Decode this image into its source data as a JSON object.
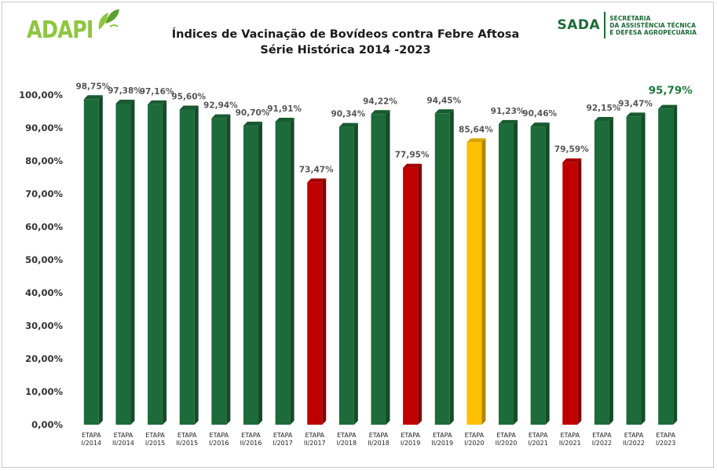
{
  "header": {
    "logo_left": "ADAPI",
    "logo_right_main": "SADA",
    "logo_right_lines": [
      "SECRETARIA",
      "DA ASSISTÊNCIA TÉCNICA",
      "E DEFESA AGROPECUÁRIA"
    ]
  },
  "colors": {
    "green": "#1d6b3a",
    "red": "#c00000",
    "yellow": "#ffc000",
    "logo_green": "#8dc63f"
  },
  "chart_data": {
    "type": "bar",
    "title": "Índices de Vacinação de Bovídeos contra Febre Aftosa",
    "subtitle": "Série Histórica 2014 -2023",
    "xlabel": "",
    "ylabel": "",
    "ylim": [
      0,
      100
    ],
    "y_ticks": [
      "0,00%",
      "10,00%",
      "20,00%",
      "30,00%",
      "40,00%",
      "50,00%",
      "60,00%",
      "70,00%",
      "80,00%",
      "90,00%",
      "100,00%"
    ],
    "grid": false,
    "categories": [
      [
        "ETAPA",
        "I/2014"
      ],
      [
        "ETAPA",
        "II/2014"
      ],
      [
        "ETAPA",
        "I/2015"
      ],
      [
        "ETAPA",
        "II/2015"
      ],
      [
        "ETAPA",
        "I/2016"
      ],
      [
        "ETAPA",
        "II/2016"
      ],
      [
        "ETAPA",
        "I/2017"
      ],
      [
        "ETAPA",
        "II/2017"
      ],
      [
        "ETAPA",
        "I/2018"
      ],
      [
        "ETAPA",
        "II/2018"
      ],
      [
        "ETAPA",
        "I/2019"
      ],
      [
        "ETAPA",
        "II/2019"
      ],
      [
        "ETAPA",
        "I/2020"
      ],
      [
        "ETAPA",
        "II/2020"
      ],
      [
        "ETAPA",
        "I/2021"
      ],
      [
        "ETAPA",
        "II/2021"
      ],
      [
        "ETAPA",
        "I/2022"
      ],
      [
        "ETAPA",
        "II/2022"
      ],
      [
        "ETAPA",
        "I/2023"
      ]
    ],
    "values": [
      98.75,
      97.38,
      97.16,
      95.6,
      92.94,
      90.7,
      91.91,
      73.47,
      90.34,
      94.22,
      77.95,
      94.45,
      85.64,
      91.23,
      90.46,
      79.59,
      92.15,
      93.47,
      95.79
    ],
    "data_labels": [
      "98,75%",
      "97,38%",
      "97,16%",
      "95,60%",
      "92,94%",
      "90,70%",
      "91,91%",
      "73,47%",
      "90,34%",
      "94,22%",
      "77,95%",
      "94,45%",
      "85,64%",
      "91,23%",
      "90,46%",
      "79,59%",
      "92,15%",
      "93,47%",
      "95,79%"
    ],
    "bar_colors": [
      "green",
      "green",
      "green",
      "green",
      "green",
      "green",
      "green",
      "red",
      "green",
      "green",
      "red",
      "green",
      "yellow",
      "green",
      "green",
      "red",
      "green",
      "green",
      "green"
    ]
  }
}
